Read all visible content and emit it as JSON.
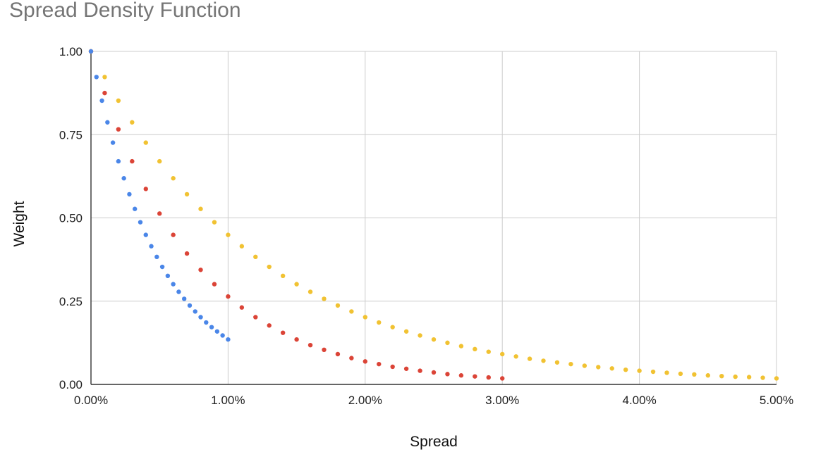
{
  "chart_data": {
    "type": "scatter",
    "title": "Spread Density Function",
    "xlabel": "Spread",
    "ylabel": "Weight",
    "xlim": [
      0,
      0.05
    ],
    "ylim": [
      0,
      1
    ],
    "x_ticks": [
      0,
      0.01,
      0.02,
      0.03,
      0.04,
      0.05
    ],
    "x_tick_labels": [
      "0.00%",
      "1.00%",
      "2.00%",
      "3.00%",
      "4.00%",
      "5.00%"
    ],
    "y_ticks": [
      0,
      0.25,
      0.5,
      0.75,
      1.0
    ],
    "y_tick_labels": [
      "0.00",
      "0.25",
      "0.50",
      "0.75",
      "1.00"
    ],
    "grid": true,
    "legend": "none",
    "series": [
      {
        "color": "#4a86e8",
        "x": [
          0.0,
          0.0004,
          0.0008,
          0.0012,
          0.0016,
          0.002,
          0.0024,
          0.0028,
          0.0032,
          0.0036,
          0.004,
          0.0044,
          0.0048,
          0.0052,
          0.0056,
          0.006,
          0.0064,
          0.0068,
          0.0072,
          0.0076,
          0.008,
          0.0084,
          0.0088,
          0.0092,
          0.0096,
          0.01
        ],
        "y": [
          1.0,
          0.923,
          0.852,
          0.787,
          0.726,
          0.67,
          0.619,
          0.571,
          0.527,
          0.487,
          0.449,
          0.415,
          0.383,
          0.353,
          0.326,
          0.301,
          0.278,
          0.257,
          0.237,
          0.219,
          0.202,
          0.186,
          0.172,
          0.159,
          0.147,
          0.135
        ]
      },
      {
        "color": "#db4437",
        "x": [
          0.0,
          0.001,
          0.002,
          0.003,
          0.004,
          0.005,
          0.006,
          0.007,
          0.008,
          0.009,
          0.01,
          0.011,
          0.012,
          0.013,
          0.014,
          0.015,
          0.016,
          0.017,
          0.018,
          0.019,
          0.02,
          0.021,
          0.022,
          0.023,
          0.024,
          0.025,
          0.026,
          0.027,
          0.028,
          0.029,
          0.03
        ],
        "y": [
          1.0,
          0.875,
          0.766,
          0.67,
          0.587,
          0.513,
          0.449,
          0.393,
          0.344,
          0.301,
          0.264,
          0.231,
          0.202,
          0.177,
          0.155,
          0.135,
          0.118,
          0.104,
          0.091,
          0.079,
          0.069,
          0.061,
          0.053,
          0.047,
          0.041,
          0.036,
          0.031,
          0.027,
          0.024,
          0.021,
          0.018
        ]
      },
      {
        "color": "#f1c232",
        "x": [
          0.0,
          0.001,
          0.002,
          0.003,
          0.004,
          0.005,
          0.006,
          0.007,
          0.008,
          0.009,
          0.01,
          0.011,
          0.012,
          0.013,
          0.014,
          0.015,
          0.016,
          0.017,
          0.018,
          0.019,
          0.02,
          0.021,
          0.022,
          0.023,
          0.024,
          0.025,
          0.026,
          0.027,
          0.028,
          0.029,
          0.03,
          0.031,
          0.032,
          0.033,
          0.034,
          0.035,
          0.036,
          0.037,
          0.038,
          0.039,
          0.04,
          0.041,
          0.042,
          0.043,
          0.044,
          0.045,
          0.046,
          0.047,
          0.048,
          0.049,
          0.05
        ],
        "y": [
          1.0,
          0.923,
          0.852,
          0.787,
          0.726,
          0.67,
          0.619,
          0.571,
          0.527,
          0.487,
          0.449,
          0.415,
          0.383,
          0.353,
          0.326,
          0.301,
          0.278,
          0.257,
          0.237,
          0.219,
          0.202,
          0.186,
          0.172,
          0.159,
          0.147,
          0.135,
          0.125,
          0.115,
          0.106,
          0.098,
          0.091,
          0.084,
          0.077,
          0.071,
          0.066,
          0.061,
          0.056,
          0.052,
          0.048,
          0.044,
          0.041,
          0.038,
          0.035,
          0.032,
          0.03,
          0.027,
          0.025,
          0.023,
          0.022,
          0.02,
          0.018
        ]
      }
    ]
  }
}
